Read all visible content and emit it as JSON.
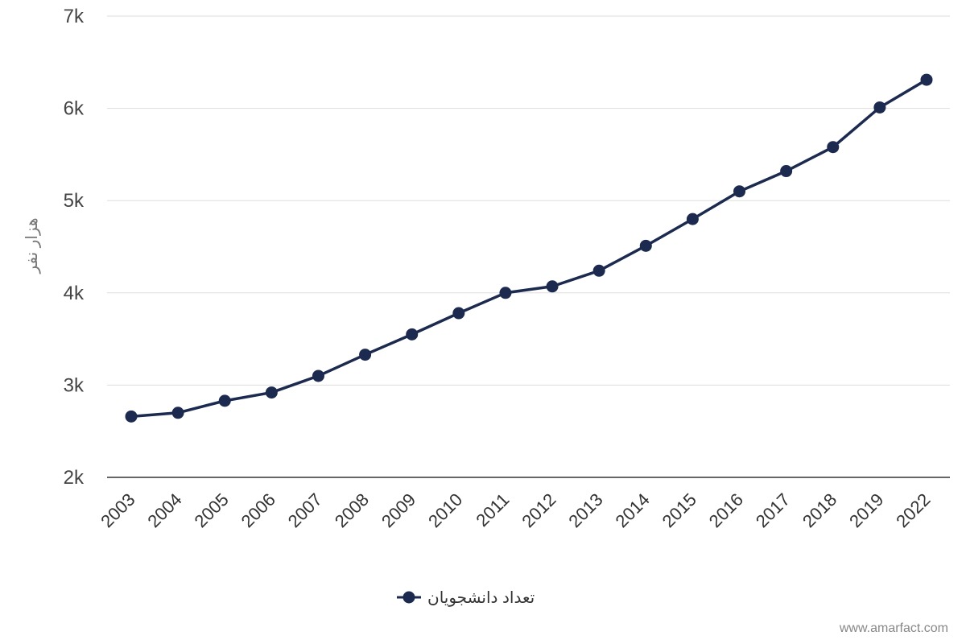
{
  "chart_data": {
    "type": "line",
    "categories": [
      "2003",
      "2004",
      "2005",
      "2006",
      "2007",
      "2008",
      "2009",
      "2010",
      "2011",
      "2012",
      "2013",
      "2014",
      "2015",
      "2016",
      "2017",
      "2018",
      "2019",
      "2022"
    ],
    "series": [
      {
        "name": "تعداد دانشجویان",
        "values": [
          2660,
          2700,
          2830,
          2920,
          3100,
          3330,
          3550,
          3780,
          4000,
          4070,
          4240,
          4510,
          4800,
          5100,
          5320,
          5580,
          6010,
          6310
        ],
        "color": "#1b2a4e"
      }
    ],
    "ylim": [
      2000,
      7000
    ],
    "yticks": [
      2000,
      3000,
      4000,
      5000,
      6000,
      7000
    ],
    "ytick_labels": [
      "2k",
      "3k",
      "4k",
      "5k",
      "6k",
      "7k"
    ],
    "ylabel": "هزار نفر",
    "xlabel": "",
    "grid": true,
    "legend_position": "bottom-center"
  },
  "watermark": "www.amarfact.com"
}
